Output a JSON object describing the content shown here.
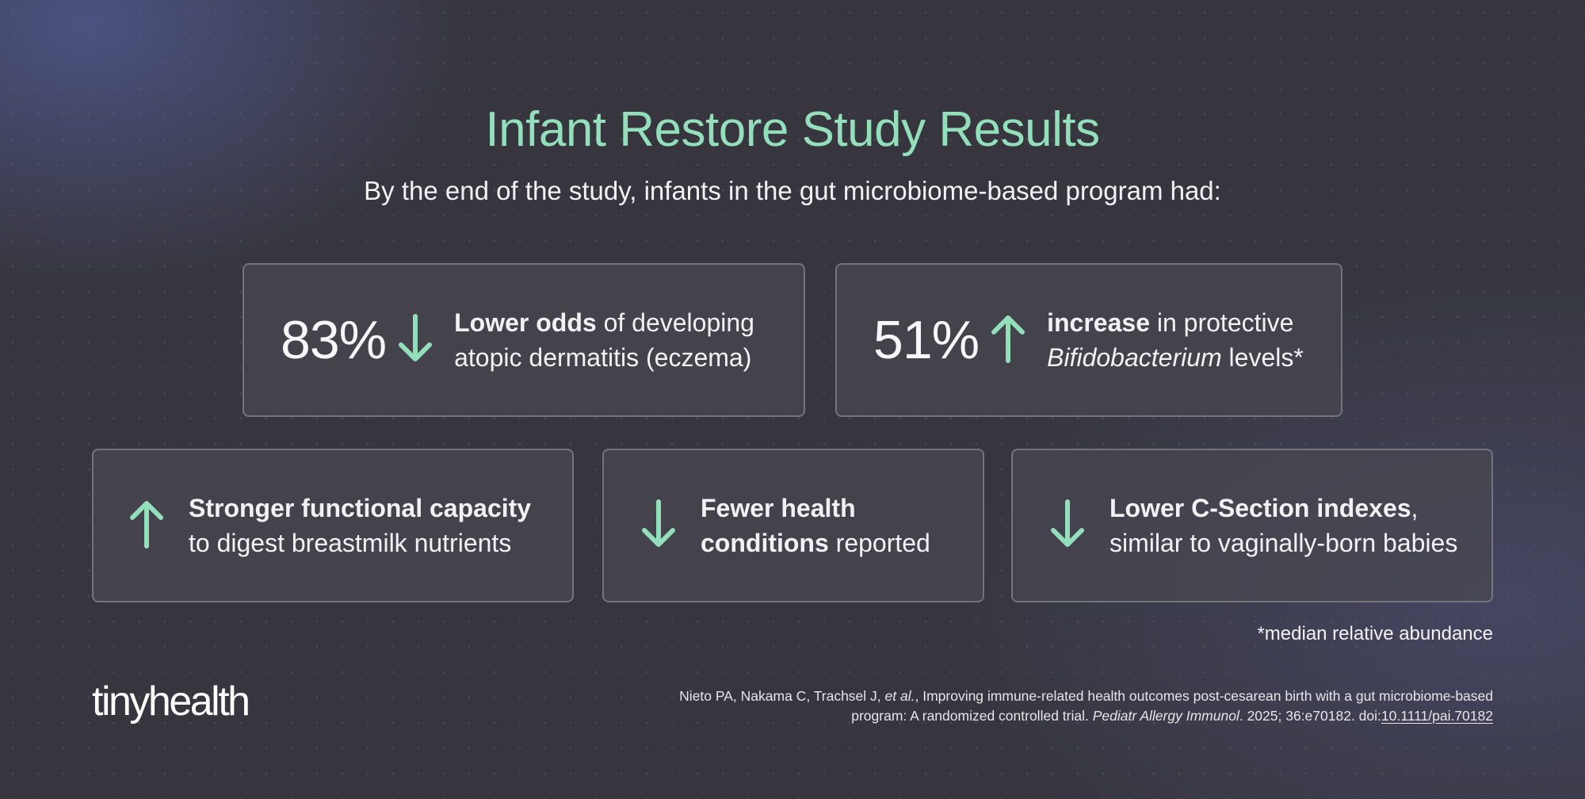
{
  "header": {
    "title": "Infant Restore Study Results",
    "subtitle": "By the end of the study, infants in the gut microbiome-based program had:"
  },
  "cards": {
    "eczema": {
      "stat": "83%",
      "arrow": "arrow-down-icon",
      "bold": "Lower odds",
      "text1": " of developing",
      "text2": "atopic dermatitis (eczema)"
    },
    "bifido": {
      "stat": "51%",
      "arrow": "arrow-up-icon",
      "bold": "increase",
      "text1": " in protective",
      "italic": "Bifidobacterium",
      "text2": " levels*"
    },
    "capacity": {
      "arrow": "arrow-up-icon",
      "bold": "Stronger functional capacity",
      "text2": "to digest breastmilk nutrients"
    },
    "conditions": {
      "arrow": "arrow-down-icon",
      "bold1": "Fewer health",
      "bold2": "conditions",
      "text2": " reported"
    },
    "csection": {
      "arrow": "arrow-down-icon",
      "bold": "Lower C-Section indexes",
      "text1": ",",
      "text2": "similar to vaginally-born babies"
    }
  },
  "footnote": "*median relative abundance",
  "brand": {
    "logo_text": "tinyhealth"
  },
  "citation": {
    "authors": "Nieto PA, Nakama C, Trachsel J, ",
    "et_al": "et al.",
    "title": ", Improving immune-related health outcomes post-cesarean birth with a gut microbiome-based program: A randomized controlled trial. ",
    "journal": "Pediatr Allergy Immunol",
    "details": ". 2025; 36:e70182. doi:",
    "doi": "10.1111/pai.70182"
  },
  "colors": {
    "accent": "#93dfbb",
    "background": "#37363f",
    "text": "#f2f2f5"
  }
}
